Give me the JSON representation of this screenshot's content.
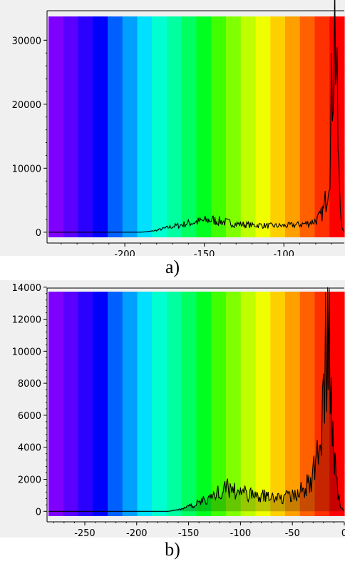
{
  "chart_data": [
    {
      "type": "line",
      "title": "",
      "xlabel": "",
      "ylabel": "",
      "grid": false,
      "xlim": [
        -248,
        -62
      ],
      "ylim": [
        -800,
        34500
      ],
      "xticks": [
        -200,
        -150,
        -100
      ],
      "yticks": [
        0,
        10000,
        20000,
        30000
      ],
      "background_bands": [
        "#8000ff",
        "#5a00ff",
        "#2a00ff",
        "#0000ff",
        "#0060ff",
        "#00a0ff",
        "#00e0ff",
        "#00ffd0",
        "#00ffa0",
        "#00ff60",
        "#00ff20",
        "#40ff00",
        "#80ff00",
        "#c0ff00",
        "#f0ff00",
        "#ffd000",
        "#ffa000",
        "#ff6000",
        "#ff3000",
        "#ff0000"
      ],
      "line_color": "#000000",
      "series": [
        {
          "x": [
            -248,
            -190,
            -185,
            -180,
            -175,
            -170,
            -165,
            -160,
            -155,
            -150,
            -145,
            -140,
            -135,
            -130,
            -125,
            -120,
            -115,
            -110,
            -105,
            -100,
            -95,
            -90,
            -85,
            -80,
            -77,
            -75,
            -73,
            -71,
            -70,
            -69,
            -68,
            -67,
            -66,
            -65,
            -64,
            -63,
            -62
          ],
          "y": [
            0,
            0,
            100,
            300,
            600,
            900,
            1100,
            1400,
            1600,
            1800,
            1900,
            1700,
            1500,
            1300,
            1200,
            1100,
            1100,
            1000,
            1000,
            1000,
            1100,
            1200,
            1400,
            1800,
            2500,
            3500,
            6000,
            12000,
            20000,
            28000,
            34000,
            26000,
            14000,
            6000,
            2000,
            500,
            0
          ]
        }
      ],
      "caption": "a)"
    },
    {
      "type": "line",
      "title": "",
      "xlabel": "",
      "ylabel": "",
      "grid": false,
      "xlim": [
        -285,
        0
      ],
      "ylim": [
        -300,
        13900
      ],
      "xticks": [
        -250,
        -200,
        -150,
        -100,
        -50,
        0
      ],
      "yticks": [
        0,
        2000,
        4000,
        6000,
        8000,
        10000,
        12000,
        14000
      ],
      "background_bands": [
        "#8000ff",
        "#5a00ff",
        "#2a00ff",
        "#0000ff",
        "#0060ff",
        "#00a0ff",
        "#00e0ff",
        "#00ffd0",
        "#00ffa0",
        "#00ff60",
        "#00ff20",
        "#40ff00",
        "#80ff00",
        "#c0ff00",
        "#f0ff00",
        "#ffd000",
        "#ffa000",
        "#ff6000",
        "#ff3000",
        "#ff0000"
      ],
      "shaded_area": true,
      "line_color": "#000000",
      "series": [
        {
          "x": [
            -285,
            -170,
            -165,
            -160,
            -155,
            -150,
            -145,
            -140,
            -135,
            -130,
            -125,
            -120,
            -115,
            -110,
            -105,
            -100,
            -95,
            -90,
            -85,
            -80,
            -75,
            -70,
            -65,
            -60,
            -55,
            -50,
            -45,
            -40,
            -35,
            -30,
            -27,
            -25,
            -23,
            -21,
            -19,
            -17,
            -16,
            -15,
            -14,
            -13,
            -12,
            -11,
            -10,
            -9,
            -8,
            -6,
            -4,
            -2,
            0
          ],
          "y": [
            0,
            0,
            50,
            100,
            200,
            300,
            400,
            550,
            700,
            850,
            1000,
            1200,
            1400,
            1500,
            1350,
            1200,
            1100,
            1050,
            1000,
            950,
            950,
            900,
            900,
            850,
            900,
            950,
            1100,
            1350,
            1700,
            2300,
            3000,
            3800,
            5000,
            6500,
            8500,
            10500,
            12500,
            13700,
            12000,
            10000,
            8000,
            6500,
            4800,
            3200,
            2200,
            1200,
            500,
            150,
            0
          ]
        }
      ],
      "caption": "b)"
    }
  ]
}
